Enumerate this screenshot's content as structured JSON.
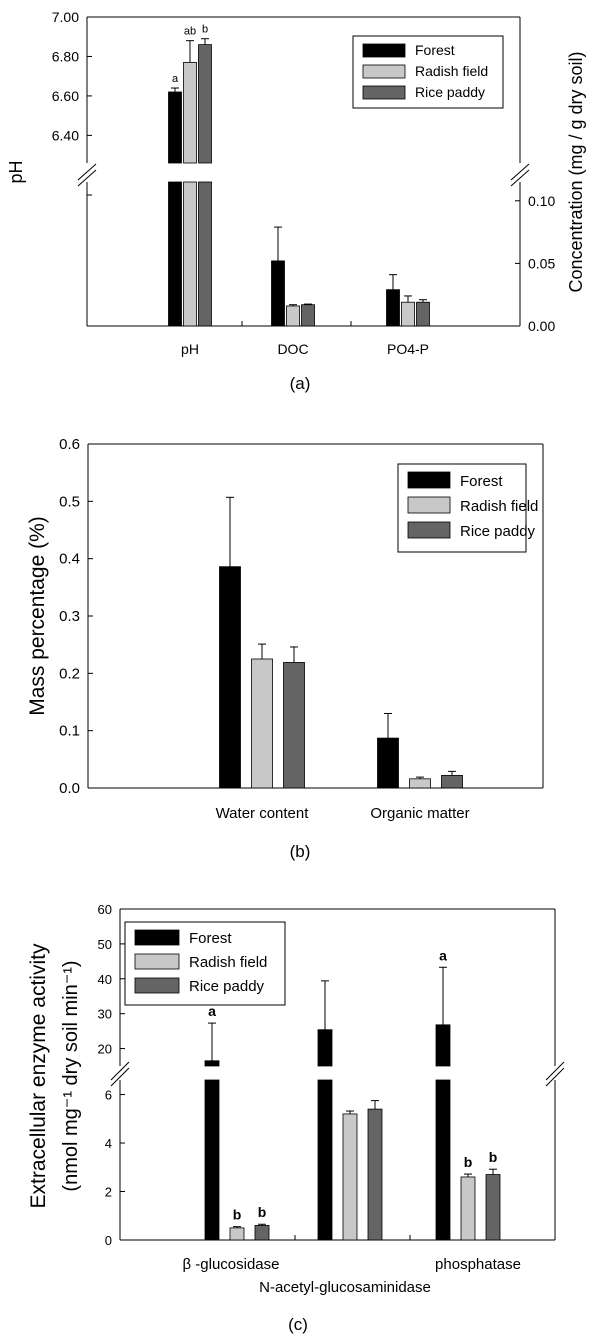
{
  "colors": {
    "forest": "#000000",
    "radish": "#c8c8c8",
    "rice": "#646464",
    "axis": "#000000",
    "background": "#ffffff"
  },
  "legend_labels": [
    "Forest",
    "Radish field",
    "Rice paddy"
  ],
  "chart_data": [
    {
      "panel_label": "(a)",
      "type": "bar",
      "categories": [
        "pH",
        "DOC",
        "PO4-P"
      ],
      "series_names": [
        "Forest",
        "Radish field",
        "Rice paddy"
      ],
      "ylabel_left": "pH",
      "ylabel_right": "Concentration (mg / g dry soil)",
      "ph_axis": {
        "range": [
          6.26,
          7.0
        ],
        "ticks": [
          "6.40",
          "6.60",
          "6.80",
          "7.00"
        ]
      },
      "conc_axis": {
        "range": [
          0.0,
          0.115
        ],
        "ticks": [
          "0.00",
          "0.05",
          "0.10"
        ]
      },
      "ph_values": [
        6.62,
        6.77,
        6.86
      ],
      "ph_errors": [
        0.02,
        0.11,
        0.03
      ],
      "ph_letters": [
        "a",
        "ab",
        "b"
      ],
      "conc_values": {
        "DOC": [
          0.052,
          0.016,
          0.017
        ],
        "PO4-P": [
          0.029,
          0.019,
          0.019
        ]
      },
      "conc_errors": {
        "DOC": [
          0.027,
          0.001,
          0.0005
        ],
        "PO4-P": [
          0.012,
          0.005,
          0.002
        ]
      }
    },
    {
      "panel_label": "(b)",
      "type": "bar",
      "categories": [
        "Water content",
        "Organic matter"
      ],
      "ylabel": "Mass percentage (%)",
      "ylim": [
        0.0,
        0.6
      ],
      "yticks": [
        "0.0",
        "0.1",
        "0.2",
        "0.3",
        "0.4",
        "0.5",
        "0.6"
      ],
      "series": [
        {
          "name": "Forest",
          "values": [
            0.386,
            0.087
          ],
          "errors": [
            0.121,
            0.043
          ]
        },
        {
          "name": "Radish field",
          "values": [
            0.225,
            0.016
          ],
          "errors": [
            0.026,
            0.003
          ]
        },
        {
          "name": "Rice paddy",
          "values": [
            0.219,
            0.022
          ],
          "errors": [
            0.027,
            0.007
          ]
        }
      ]
    },
    {
      "panel_label": "(c)",
      "type": "bar",
      "categories": [
        "β -glucosidase",
        "N-acetyl-glucosaminidase",
        "phosphatase"
      ],
      "ylabel_line1": "Extracellular enzyme activity",
      "ylabel_line2": "(nmol mg⁻¹ dry soil min⁻¹)",
      "upper_axis": {
        "range": [
          15,
          60
        ],
        "ticks": [
          "20",
          "30",
          "40",
          "50",
          "60"
        ]
      },
      "lower_axis": {
        "range": [
          0,
          6.6
        ],
        "ticks": [
          "0",
          "2",
          "4",
          "6"
        ]
      },
      "series": [
        {
          "name": "Forest",
          "values": [
            16.5,
            25.4,
            26.8
          ],
          "errors": [
            10.8,
            14.0,
            16.5
          ],
          "letters": [
            "a",
            "",
            "a"
          ]
        },
        {
          "name": "Radish field",
          "values": [
            0.5,
            5.2,
            2.6
          ],
          "errors": [
            0.05,
            0.12,
            0.12
          ],
          "letters": [
            "b",
            "",
            "b"
          ]
        },
        {
          "name": "Rice paddy",
          "values": [
            0.6,
            5.4,
            2.7
          ],
          "errors": [
            0.05,
            0.35,
            0.22
          ],
          "letters": [
            "b",
            "",
            "b"
          ]
        }
      ]
    }
  ]
}
